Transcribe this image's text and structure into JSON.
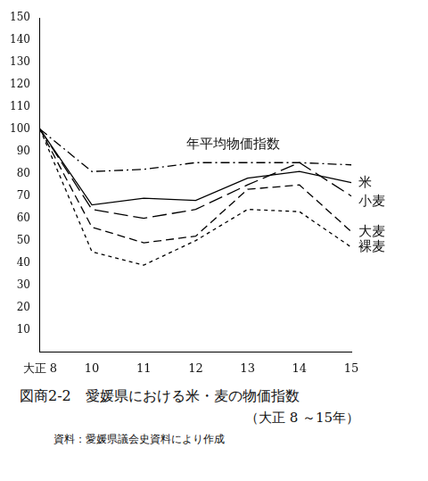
{
  "chart_data": {
    "type": "line",
    "title": "図商2-2　愛媛県における米・麦の物価指数",
    "subtitle": "（大正 8 ～15年）",
    "annotations": [
      "資料：愛媛県議会史資料により作成"
    ],
    "categories": [
      "大正 8",
      "10",
      "11",
      "12",
      "13",
      "14",
      "15"
    ],
    "series": [
      {
        "name": "年平均物価指数",
        "color": "#000000",
        "line_style": "dashdot",
        "values": [
          100,
          81,
          82,
          85,
          85,
          85,
          84
        ]
      },
      {
        "name": "米",
        "color": "#000000",
        "line_style": "solid",
        "values": [
          100,
          66,
          69,
          68,
          78,
          81,
          76
        ]
      },
      {
        "name": "小麦",
        "color": "#000000",
        "line_style": "longdash",
        "values": [
          100,
          64,
          60,
          64,
          75,
          85,
          70
        ]
      },
      {
        "name": "大麦",
        "color": "#000000",
        "line_style": "dashed",
        "values": [
          100,
          56,
          49,
          52,
          73,
          75,
          54
        ]
      },
      {
        "name": "裸麦",
        "color": "#000000",
        "line_style": "dotted",
        "values": [
          100,
          45,
          39,
          50,
          64,
          63,
          47
        ]
      }
    ],
    "ylim": [
      0,
      150
    ],
    "yticks": [
      10,
      20,
      30,
      40,
      50,
      60,
      70,
      80,
      90,
      100,
      110,
      120,
      130,
      140,
      150
    ],
    "grid": false
  }
}
